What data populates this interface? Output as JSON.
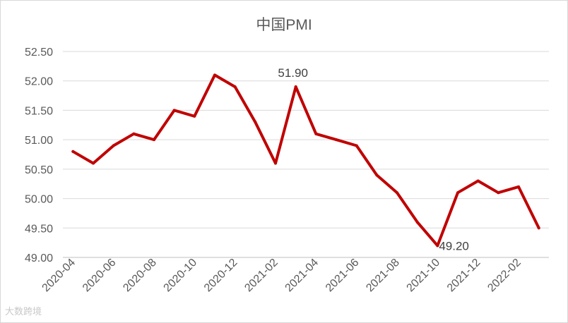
{
  "chart_data": {
    "type": "line",
    "title": "中国PMI",
    "xlabel": "",
    "ylabel": "",
    "ylim": [
      49.0,
      52.5
    ],
    "grid": true,
    "y_ticks": [
      "49.00",
      "49.50",
      "50.00",
      "50.50",
      "51.00",
      "51.50",
      "52.00",
      "52.50"
    ],
    "x_tick_labels": [
      "2020-04",
      "2020-06",
      "2020-08",
      "2020-10",
      "2020-12",
      "2021-02",
      "2021-04",
      "2021-06",
      "2021-08",
      "2021-10",
      "2021-12",
      "2022-02"
    ],
    "color": "#c00000",
    "series": [
      {
        "values": [
          50.8,
          50.6,
          50.9,
          51.1,
          51.0,
          51.5,
          51.4,
          52.1,
          51.9,
          51.3,
          50.6,
          51.9,
          51.1,
          51.0,
          50.9,
          50.4,
          50.1,
          49.6,
          49.2,
          50.1,
          50.3,
          50.1,
          50.2,
          49.5
        ]
      }
    ],
    "data_labels": [
      {
        "index": 11,
        "text": "51.90"
      },
      {
        "index": 18,
        "text": "49.20"
      }
    ]
  },
  "watermark": "大数跨境"
}
